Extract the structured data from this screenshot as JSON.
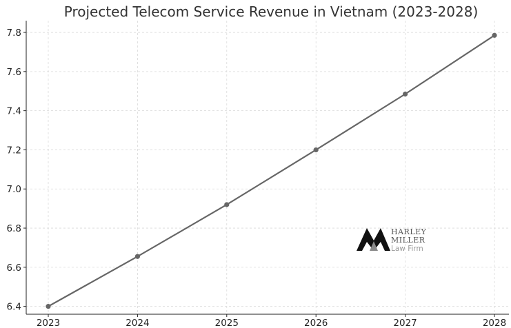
{
  "chart_data": {
    "type": "line",
    "title": "Projected Telecom Service Revenue in Vietnam (2023-2028)",
    "xlabel": "",
    "ylabel": "",
    "x": [
      "2023",
      "2024",
      "2025",
      "2026",
      "2027",
      "2028"
    ],
    "series": [
      {
        "values": [
          6.4,
          6.655,
          6.92,
          7.2,
          7.485,
          7.785
        ]
      }
    ],
    "ylim": [
      6.36,
      7.86
    ],
    "yticks": [
      "6.4",
      "6.6",
      "6.8",
      "7.0",
      "7.2",
      "7.4",
      "7.6",
      "7.8"
    ],
    "grid": true,
    "line_color": "#666666"
  },
  "watermark": {
    "brand_line1": "HARLEY",
    "brand_line2": "MILLER",
    "brand_line3": "Law Firm"
  }
}
